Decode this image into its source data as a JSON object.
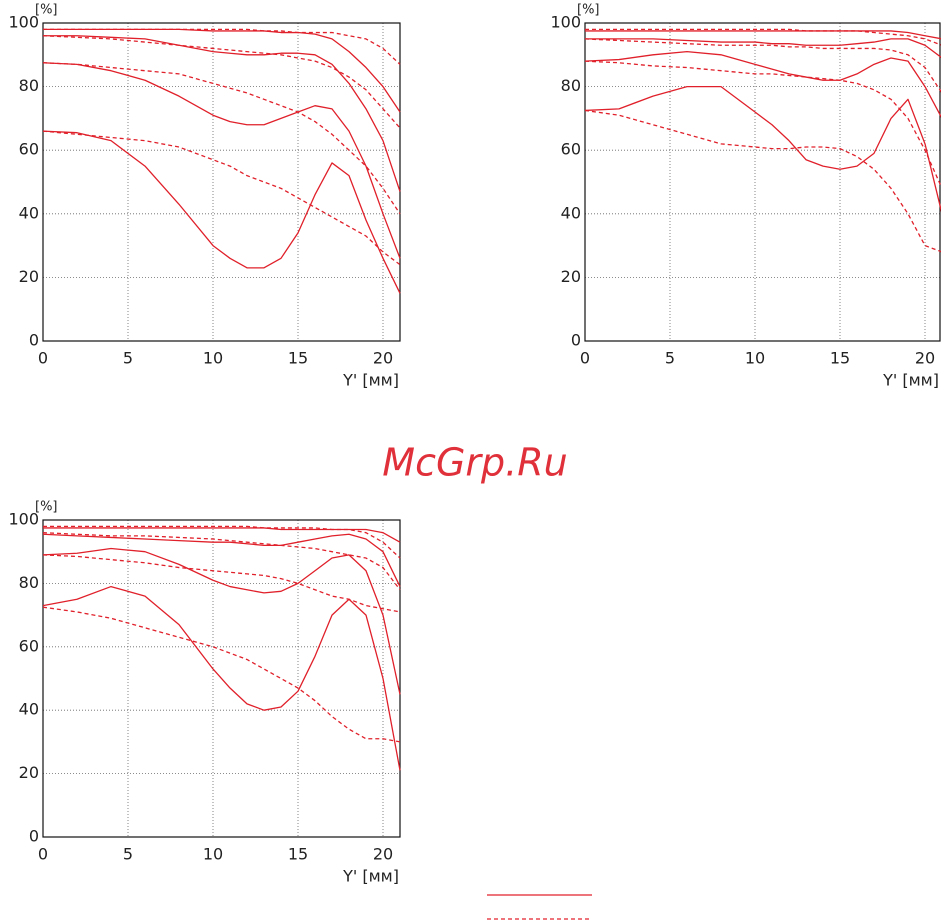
{
  "chart_data": [
    {
      "type": "line",
      "y_label": "[%]",
      "x_label": "Y' [мм]",
      "xlim": [
        0,
        21
      ],
      "ylim": [
        0,
        100
      ],
      "xticks": [
        0,
        5,
        10,
        15,
        20
      ],
      "yticks": [
        0,
        20,
        40,
        60,
        80,
        100
      ],
      "grid": true,
      "x": [
        0,
        2,
        4,
        6,
        8,
        10,
        11,
        12,
        13,
        14,
        15,
        16,
        17,
        18,
        19,
        20,
        21
      ],
      "series": [
        {
          "color": "#e0202a",
          "linestyle": "solid",
          "values": [
            98,
            98,
            98,
            98,
            98,
            97.5,
            97.5,
            97.5,
            97.5,
            97,
            97,
            96.5,
            95,
            91,
            86,
            80,
            72
          ]
        },
        {
          "color": "#e0202a",
          "linestyle": "solid",
          "values": [
            96,
            96,
            95.5,
            95,
            93,
            91,
            90.5,
            90,
            90,
            90.5,
            90.5,
            90,
            87,
            81,
            73,
            63,
            47
          ]
        },
        {
          "color": "#e0202a",
          "linestyle": "solid",
          "values": [
            87.5,
            87,
            85,
            82,
            77,
            71,
            69,
            68,
            68,
            70,
            72,
            74,
            73,
            66,
            55,
            40,
            26
          ]
        },
        {
          "color": "#e0202a",
          "linestyle": "solid",
          "values": [
            66,
            65.5,
            63,
            55,
            43,
            30,
            26,
            23,
            23,
            26,
            34,
            46,
            56,
            52,
            38,
            26,
            15
          ]
        },
        {
          "color": "#e0202a",
          "linestyle": "dashed",
          "values": [
            98,
            98,
            98,
            98,
            98,
            98,
            98,
            98,
            97.5,
            97.5,
            97,
            97,
            97,
            96,
            95,
            92,
            87
          ]
        },
        {
          "color": "#e0202a",
          "linestyle": "dashed",
          "values": [
            96,
            95.5,
            95,
            94,
            93,
            92,
            91.5,
            91,
            90.5,
            90,
            89,
            88,
            86,
            83,
            79,
            73,
            67
          ]
        },
        {
          "color": "#e0202a",
          "linestyle": "dashed",
          "values": [
            87.5,
            87,
            86,
            85,
            84,
            81,
            79.5,
            78,
            76,
            74,
            72,
            69,
            65,
            60,
            55,
            48,
            40
          ]
        },
        {
          "color": "#e0202a",
          "linestyle": "dashed",
          "values": [
            66,
            65,
            64,
            63,
            61,
            57,
            55,
            52,
            50,
            48,
            45,
            42,
            39,
            36,
            33,
            28,
            24
          ]
        }
      ]
    },
    {
      "type": "line",
      "y_label": "[%]",
      "x_label": "Y' [мм]",
      "xlim": [
        0,
        21
      ],
      "ylim": [
        0,
        100
      ],
      "xticks": [
        0,
        5,
        10,
        15,
        20
      ],
      "yticks": [
        0,
        20,
        40,
        60,
        80,
        100
      ],
      "grid": true,
      "x": [
        0,
        2,
        4,
        6,
        8,
        10,
        11,
        12,
        13,
        14,
        15,
        16,
        17,
        18,
        19,
        20,
        21
      ],
      "series": [
        {
          "color": "#e0202a",
          "linestyle": "solid",
          "values": [
            97.5,
            97.5,
            97.5,
            97.5,
            97.5,
            97.5,
            97.5,
            97.5,
            97.5,
            97.5,
            97.5,
            97.5,
            97.5,
            97.5,
            97,
            96,
            95
          ]
        },
        {
          "color": "#e0202a",
          "linestyle": "solid",
          "values": [
            95,
            95,
            95,
            94.5,
            94,
            94,
            93.5,
            93.5,
            93,
            93,
            93,
            93.5,
            94,
            95,
            95,
            93,
            89
          ]
        },
        {
          "color": "#e0202a",
          "linestyle": "solid",
          "values": [
            88,
            88.5,
            90,
            91,
            90,
            87,
            85.5,
            84,
            83,
            82,
            82,
            84,
            87,
            89,
            88,
            80,
            70
          ]
        },
        {
          "color": "#e0202a",
          "linestyle": "solid",
          "values": [
            72.5,
            73,
            77,
            80,
            80,
            72,
            68,
            63,
            57,
            55,
            54,
            55,
            59,
            70,
            76,
            62,
            40
          ]
        },
        {
          "color": "#e0202a",
          "linestyle": "dashed",
          "values": [
            98,
            98,
            98,
            98,
            98,
            98,
            98,
            98,
            97.5,
            97.5,
            97.5,
            97.5,
            97,
            96.5,
            96,
            95,
            93
          ]
        },
        {
          "color": "#e0202a",
          "linestyle": "dashed",
          "values": [
            95,
            94.5,
            94,
            93.5,
            93,
            93,
            93,
            92.5,
            92.5,
            92,
            92,
            92,
            92,
            91.5,
            90,
            86,
            78
          ]
        },
        {
          "color": "#e0202a",
          "linestyle": "dashed",
          "values": [
            88,
            87.5,
            86.5,
            86,
            85,
            84,
            84,
            83.5,
            83,
            82.5,
            82,
            81,
            79,
            76,
            70,
            60,
            48
          ]
        },
        {
          "color": "#e0202a",
          "linestyle": "dashed",
          "values": [
            72.5,
            71,
            68,
            65,
            62,
            61,
            60.5,
            60.5,
            61,
            61,
            60.5,
            58,
            54,
            48,
            40,
            30,
            28
          ]
        }
      ]
    },
    {
      "type": "line",
      "y_label": "[%]",
      "x_label": "Y' [мм]",
      "xlim": [
        0,
        21
      ],
      "ylim": [
        0,
        100
      ],
      "xticks": [
        0,
        5,
        10,
        15,
        20
      ],
      "yticks": [
        0,
        20,
        40,
        60,
        80,
        100
      ],
      "grid": true,
      "x": [
        0,
        2,
        4,
        6,
        8,
        10,
        11,
        12,
        13,
        14,
        15,
        16,
        17,
        18,
        19,
        20,
        21
      ],
      "series": [
        {
          "color": "#e0202a",
          "linestyle": "solid",
          "values": [
            97.5,
            97.5,
            97.5,
            97.5,
            97.5,
            97.5,
            97.5,
            97.5,
            97.5,
            97,
            97,
            97,
            97,
            97,
            97,
            96,
            93
          ]
        },
        {
          "color": "#e0202a",
          "linestyle": "solid",
          "values": [
            95.5,
            95,
            94.5,
            94,
            93.5,
            93,
            93,
            92.5,
            92,
            92,
            93,
            94,
            95,
            95.5,
            94,
            90,
            79
          ]
        },
        {
          "color": "#e0202a",
          "linestyle": "solid",
          "values": [
            89,
            89.5,
            91,
            90,
            86,
            81,
            79,
            78,
            77,
            77.5,
            80,
            84,
            88,
            89,
            84,
            70,
            45
          ]
        },
        {
          "color": "#e0202a",
          "linestyle": "solid",
          "values": [
            73,
            75,
            79,
            76,
            67,
            53,
            47,
            42,
            40,
            41,
            46,
            57,
            70,
            75,
            70,
            50,
            21
          ]
        },
        {
          "color": "#e0202a",
          "linestyle": "dashed",
          "values": [
            98,
            98,
            98,
            98,
            98,
            98,
            98,
            98,
            97.5,
            97.5,
            97.5,
            97.5,
            97,
            97,
            96,
            93,
            88
          ]
        },
        {
          "color": "#e0202a",
          "linestyle": "dashed",
          "values": [
            96,
            95.5,
            95,
            95,
            94.5,
            94,
            93.5,
            93,
            92.5,
            92,
            91.5,
            91,
            90,
            89,
            88,
            85,
            78
          ]
        },
        {
          "color": "#e0202a",
          "linestyle": "dashed",
          "values": [
            89,
            88.5,
            87.5,
            86.5,
            85,
            84,
            83.5,
            83,
            82.5,
            81.5,
            80,
            78,
            76,
            75,
            73,
            72,
            71
          ]
        },
        {
          "color": "#e0202a",
          "linestyle": "dashed",
          "values": [
            72.5,
            71,
            69,
            66,
            63,
            60,
            58,
            56,
            53,
            50,
            47,
            43,
            38,
            34,
            31,
            31,
            30
          ]
        }
      ]
    }
  ],
  "watermark": "McGrp.Ru"
}
